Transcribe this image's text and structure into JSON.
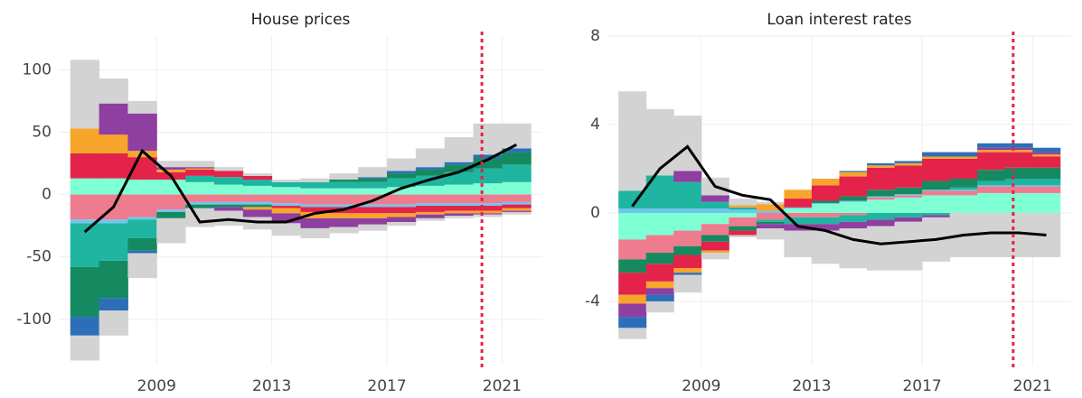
{
  "chart_data": [
    {
      "type": "stacked-bar-line",
      "title": "House prices",
      "x": [
        2006.5,
        2007.5,
        2008.5,
        2009.5,
        2010.5,
        2011.5,
        2012.5,
        2013.5,
        2014.5,
        2015.5,
        2016.5,
        2017.5,
        2018.5,
        2019.5,
        2020.5,
        2021.5
      ],
      "xlim": [
        2005.6,
        2022.4
      ],
      "xticks": [
        2009,
        2013,
        2017,
        2021
      ],
      "ylim": [
        -137,
        127
      ],
      "yticks": [
        -100,
        -50,
        0,
        50,
        100
      ],
      "grid": true,
      "vline": 2020.3,
      "vline_color": "#e3234a",
      "series": [
        {
          "color": "#7fffd4",
          "values": [
            13,
            13,
            12,
            12,
            10,
            8,
            7,
            6,
            5,
            5,
            5,
            6,
            7,
            8,
            9,
            10
          ]
        },
        {
          "color": "#ef7b8e",
          "values": [
            -20,
            -20,
            -18,
            -12,
            -6,
            -6,
            -6,
            -7,
            -8,
            -8,
            -8,
            -8,
            -7,
            -7,
            -7,
            -6
          ]
        },
        {
          "color": "#6ec6ee",
          "values": [
            -3,
            -3,
            -2,
            -2,
            -2,
            -2,
            -2,
            -2,
            -2,
            -2,
            -2,
            -2,
            -2,
            -2,
            -2,
            -2
          ]
        },
        {
          "color": "#1fb5a0",
          "values": [
            -35,
            -30,
            -15,
            0,
            5,
            6,
            5,
            4,
            5,
            5,
            5,
            7,
            8,
            10,
            12,
            14
          ]
        },
        {
          "color": "#158a60",
          "values": [
            -40,
            -30,
            -10,
            -5,
            -3,
            -2,
            -2,
            0,
            0,
            2,
            3,
            4,
            5,
            6,
            8,
            10
          ]
        },
        {
          "color": "#e3234a",
          "values": [
            20,
            20,
            18,
            6,
            5,
            5,
            3,
            -2,
            -4,
            -5,
            -5,
            -5,
            -5,
            -4,
            -4,
            -3
          ]
        },
        {
          "color": "#f8a52c",
          "values": [
            20,
            15,
            5,
            2,
            1,
            0,
            -2,
            -4,
            -5,
            -4,
            -4,
            -3,
            -2,
            -2,
            -2,
            -2
          ]
        },
        {
          "color": "#8e3fa0",
          "values": [
            0,
            25,
            30,
            2,
            1,
            -3,
            -6,
            -8,
            -8,
            -7,
            -5,
            -4,
            -3,
            -2,
            -1,
            -1
          ]
        },
        {
          "color": "#2c6fb8",
          "values": [
            -15,
            -10,
            -2,
            0,
            0,
            0,
            0,
            0,
            0,
            0,
            1,
            2,
            2,
            2,
            3,
            3
          ]
        },
        {
          "color": "#d3d3d3",
          "values": [
            55,
            20,
            10,
            5,
            5,
            3,
            2,
            2,
            3,
            5,
            8,
            10,
            15,
            20,
            25,
            20
          ]
        },
        {
          "color": "#d3d3d3",
          "values": [
            -20,
            -20,
            -20,
            -20,
            -15,
            -12,
            -10,
            -10,
            -8,
            -5,
            -5,
            -3,
            -2,
            -2,
            -2,
            -2
          ]
        }
      ],
      "line": {
        "color": "#000000",
        "values": [
          -30,
          -10,
          35,
          15,
          -22,
          -20,
          -22,
          -22,
          -15,
          -12,
          -5,
          5,
          12,
          18,
          28,
          40
        ]
      }
    },
    {
      "type": "stacked-bar-line",
      "title": "Loan interest rates",
      "x": [
        2006.5,
        2007.5,
        2008.5,
        2009.5,
        2010.5,
        2011.5,
        2012.5,
        2013.5,
        2014.5,
        2015.5,
        2016.5,
        2017.5,
        2018.5,
        2019.5,
        2020.5,
        2021.5
      ],
      "xlim": [
        2005.6,
        2022.4
      ],
      "xticks": [
        2009,
        2013,
        2017,
        2021
      ],
      "ylim": [
        -6.9,
        8
      ],
      "yticks": [
        -4,
        0,
        4,
        8
      ],
      "grid": true,
      "vline": 2020.3,
      "vline_color": "#e3234a",
      "series": [
        {
          "color": "#7fffd4",
          "values": [
            -1.2,
            -1.0,
            -0.8,
            -0.5,
            -0.2,
            0,
            0.2,
            0.4,
            0.5,
            0.6,
            0.7,
            0.8,
            0.8,
            0.9,
            0.9,
            0.9
          ]
        },
        {
          "color": "#ef7b8e",
          "values": [
            -0.9,
            -0.8,
            -0.7,
            -0.5,
            -0.4,
            -0.3,
            -0.2,
            -0.2,
            -0.1,
            0.1,
            0.1,
            0.2,
            0.2,
            0.3,
            0.3,
            0.3
          ]
        },
        {
          "color": "#6ec6ee",
          "values": [
            0.2,
            0.2,
            0.2,
            0.2,
            0.15,
            0.1,
            0.05,
            0.05,
            0.05,
            0.05,
            0.05,
            0.05,
            0.05,
            0.05,
            0.05,
            0.05
          ]
        },
        {
          "color": "#1fb5a0",
          "values": [
            0.8,
            1.5,
            1.2,
            0.3,
            0.1,
            -0.1,
            -0.3,
            -0.3,
            -0.3,
            -0.3,
            -0.2,
            -0.1,
            0.1,
            0.2,
            0.3,
            0.3
          ]
        },
        {
          "color": "#158a60",
          "values": [
            -0.6,
            -0.5,
            -0.4,
            -0.3,
            -0.2,
            -0.1,
            0,
            0.1,
            0.2,
            0.3,
            0.3,
            0.4,
            0.4,
            0.5,
            0.5,
            0.5
          ]
        },
        {
          "color": "#e3234a",
          "values": [
            -1.0,
            -0.8,
            -0.6,
            -0.4,
            -0.2,
            0,
            0.4,
            0.7,
            0.9,
            1.0,
            1.0,
            1.0,
            0.9,
            0.8,
            0.7,
            0.5
          ]
        },
        {
          "color": "#f8a52c",
          "values": [
            -0.4,
            -0.3,
            -0.2,
            -0.1,
            0.1,
            0.3,
            0.4,
            0.3,
            0.2,
            0.1,
            0.1,
            0.1,
            0.1,
            0.1,
            0.1,
            0.1
          ]
        },
        {
          "color": "#8e3fa0",
          "values": [
            -0.6,
            -0.3,
            0.5,
            0.3,
            0,
            -0.2,
            -0.3,
            -0.3,
            -0.3,
            -0.3,
            -0.2,
            -0.1,
            0,
            0.1,
            0.1,
            0.1
          ]
        },
        {
          "color": "#2c6fb8",
          "values": [
            -0.5,
            -0.3,
            -0.1,
            0,
            0,
            0,
            0,
            0,
            0.05,
            0.1,
            0.1,
            0.2,
            0.2,
            0.2,
            0.2,
            0.2
          ]
        },
        {
          "color": "#d3d3d3",
          "values": [
            4.5,
            3,
            2.5,
            0.8,
            0.3,
            0.1,
            0,
            0,
            0,
            0,
            0,
            0,
            0,
            0,
            0,
            0
          ]
        },
        {
          "color": "#d3d3d3",
          "values": [
            -0.5,
            -0.5,
            -0.8,
            -0.3,
            -0.1,
            -0.5,
            -1.2,
            -1.5,
            -1.8,
            -2.0,
            -2.2,
            -2.0,
            -2.0,
            -2.0,
            -2.0,
            -2.0
          ]
        }
      ],
      "line": {
        "color": "#000000",
        "values": [
          0.3,
          2.0,
          3.0,
          1.2,
          0.8,
          0.6,
          -0.6,
          -0.8,
          -1.2,
          -1.4,
          -1.3,
          -1.2,
          -1.0,
          -0.9,
          -0.9,
          -1.0
        ]
      }
    }
  ]
}
